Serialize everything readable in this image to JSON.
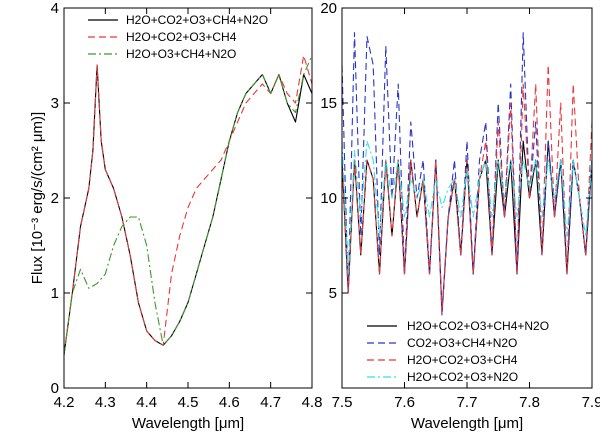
{
  "chart_data": [
    {
      "type": "line",
      "id": "left",
      "xlabel": "Wavelength [μm]",
      "ylabel": "Flux [10⁻³ erg/s/(cm² μm)]",
      "xlim": [
        4.2,
        4.8
      ],
      "ylim": [
        0,
        4
      ],
      "xticks": [
        4.2,
        4.3,
        4.4,
        4.5,
        4.6,
        4.7,
        4.8
      ],
      "xtick_labels": [
        "4.2",
        "4.3",
        "4.4",
        "4.5",
        "4.6",
        "4.7",
        "4.8"
      ],
      "yticks": [
        0,
        1,
        2,
        3,
        4
      ],
      "ytick_labels": [
        "0",
        "1",
        "2",
        "3",
        "4"
      ],
      "legend_position": "top-left",
      "series": [
        {
          "name": "H2O+CO2+O3+CH4+N2O",
          "color": "#000000",
          "dash": "solid",
          "x": [
            4.2,
            4.22,
            4.24,
            4.26,
            4.27,
            4.28,
            4.29,
            4.3,
            4.32,
            4.34,
            4.36,
            4.38,
            4.4,
            4.42,
            4.44,
            4.46,
            4.48,
            4.5,
            4.52,
            4.54,
            4.56,
            4.58,
            4.6,
            4.62,
            4.64,
            4.66,
            4.68,
            4.7,
            4.72,
            4.74,
            4.76,
            4.78,
            4.8
          ],
          "y": [
            0.35,
            1.0,
            1.7,
            2.1,
            2.5,
            3.4,
            2.6,
            2.3,
            2.1,
            1.8,
            1.4,
            0.9,
            0.6,
            0.5,
            0.45,
            0.55,
            0.7,
            0.9,
            1.2,
            1.5,
            1.8,
            2.2,
            2.6,
            2.9,
            3.1,
            3.2,
            3.3,
            3.1,
            3.3,
            3.0,
            2.8,
            3.3,
            3.1
          ]
        },
        {
          "name": "H2O+CO2+O3+CH4",
          "color": "#e8383b",
          "dash": "dashed",
          "x": [
            4.2,
            4.22,
            4.24,
            4.26,
            4.27,
            4.28,
            4.29,
            4.3,
            4.32,
            4.34,
            4.36,
            4.38,
            4.4,
            4.42,
            4.44,
            4.46,
            4.48,
            4.5,
            4.52,
            4.54,
            4.56,
            4.58,
            4.6,
            4.62,
            4.64,
            4.66,
            4.68,
            4.7,
            4.72,
            4.74,
            4.76,
            4.78,
            4.8
          ],
          "y": [
            0.35,
            1.0,
            1.7,
            2.1,
            2.5,
            3.4,
            2.6,
            2.3,
            2.1,
            1.8,
            1.4,
            0.9,
            0.6,
            0.5,
            0.45,
            1.2,
            1.6,
            1.9,
            2.1,
            2.2,
            2.3,
            2.4,
            2.6,
            2.8,
            3.0,
            3.1,
            3.2,
            3.1,
            3.3,
            3.1,
            3.0,
            3.5,
            3.2
          ]
        },
        {
          "name": "H2O+O3+CH4+N2O",
          "color": "#3a9a2a",
          "dash": "dashdot",
          "x": [
            4.2,
            4.22,
            4.24,
            4.26,
            4.28,
            4.3,
            4.32,
            4.34,
            4.36,
            4.38,
            4.4,
            4.42,
            4.44,
            4.46,
            4.48,
            4.5,
            4.52,
            4.54,
            4.56,
            4.58,
            4.6,
            4.62,
            4.64,
            4.66,
            4.68,
            4.7,
            4.72,
            4.74,
            4.76,
            4.78,
            4.8
          ],
          "y": [
            0.35,
            1.0,
            1.25,
            1.05,
            1.1,
            1.2,
            1.5,
            1.7,
            1.8,
            1.8,
            1.5,
            0.9,
            0.45,
            0.55,
            0.7,
            0.9,
            1.2,
            1.5,
            1.8,
            2.2,
            2.6,
            2.9,
            3.1,
            3.2,
            3.3,
            3.1,
            3.3,
            3.0,
            2.9,
            3.3,
            3.5
          ]
        }
      ]
    },
    {
      "type": "line",
      "id": "right",
      "xlabel": "Wavelength [μm]",
      "ylabel": "",
      "xlim": [
        7.5,
        7.9
      ],
      "ylim": [
        0,
        20
      ],
      "xticks": [
        7.5,
        7.6,
        7.7,
        7.8,
        7.9
      ],
      "xtick_labels": [
        "7.5",
        "7.6",
        "7.7",
        "7.8",
        "7.9"
      ],
      "yticks": [
        5,
        10,
        15,
        20
      ],
      "ytick_labels": [
        "5",
        "10",
        "15",
        "20"
      ],
      "legend_position": "bottom-right",
      "series": [
        {
          "name": "H2O+CO2+O3+CH4+N2O",
          "color": "#000000",
          "dash": "solid",
          "x": [
            7.5,
            7.51,
            7.52,
            7.53,
            7.54,
            7.55,
            7.56,
            7.57,
            7.58,
            7.59,
            7.6,
            7.61,
            7.62,
            7.63,
            7.64,
            7.65,
            7.66,
            7.67,
            7.68,
            7.69,
            7.7,
            7.71,
            7.72,
            7.73,
            7.74,
            7.75,
            7.76,
            7.77,
            7.78,
            7.79,
            7.8,
            7.81,
            7.82,
            7.83,
            7.84,
            7.85,
            7.86,
            7.87,
            7.88,
            7.89,
            7.9
          ],
          "y": [
            12,
            5,
            12,
            7,
            12,
            11,
            6,
            12,
            8,
            12,
            6,
            12,
            9,
            11,
            6,
            12,
            4,
            9,
            11,
            7,
            12,
            6,
            11,
            12,
            7,
            12,
            9,
            12,
            6,
            13,
            10,
            12,
            7,
            13,
            9,
            12,
            6,
            12,
            10,
            7,
            12
          ]
        },
        {
          "name": "CO2+O3+CH4+N2O",
          "color": "#2a35c8",
          "dash": "dashed",
          "x": [
            7.5,
            7.51,
            7.52,
            7.53,
            7.54,
            7.55,
            7.56,
            7.57,
            7.58,
            7.59,
            7.6,
            7.61,
            7.62,
            7.63,
            7.64,
            7.65,
            7.66,
            7.67,
            7.68,
            7.69,
            7.7,
            7.71,
            7.72,
            7.73,
            7.74,
            7.75,
            7.76,
            7.77,
            7.78,
            7.79,
            7.8,
            7.81,
            7.82,
            7.83,
            7.84,
            7.85,
            7.86,
            7.87,
            7.88,
            7.89,
            7.9
          ],
          "y": [
            17,
            5,
            18.7,
            8,
            18.5,
            17,
            7,
            18,
            10,
            16,
            6,
            14,
            10,
            12,
            6,
            12,
            3.8,
            9,
            12,
            7,
            13,
            6,
            12,
            14,
            7,
            15,
            9,
            16,
            6,
            18.7,
            10,
            14,
            7,
            13,
            9,
            12,
            6,
            12,
            10,
            7,
            12
          ]
        },
        {
          "name": "H2O+CO2+O3+CH4",
          "color": "#e8383b",
          "dash": "dashed",
          "x": [
            7.5,
            7.51,
            7.52,
            7.53,
            7.54,
            7.55,
            7.56,
            7.57,
            7.58,
            7.59,
            7.6,
            7.61,
            7.62,
            7.63,
            7.64,
            7.65,
            7.66,
            7.67,
            7.68,
            7.69,
            7.7,
            7.71,
            7.72,
            7.73,
            7.74,
            7.75,
            7.76,
            7.77,
            7.78,
            7.79,
            7.8,
            7.81,
            7.82,
            7.83,
            7.84,
            7.85,
            7.86,
            7.87,
            7.88,
            7.89,
            7.9
          ],
          "y": [
            12,
            5,
            12,
            7,
            12,
            11,
            6,
            12,
            8,
            12,
            6,
            12,
            9,
            11,
            6,
            12,
            4,
            9,
            11,
            7,
            12,
            6,
            11,
            13,
            7,
            14,
            9,
            15,
            6,
            16,
            10,
            16,
            7,
            17,
            9,
            15,
            6,
            16,
            10,
            7,
            14
          ]
        },
        {
          "name": "H2O+CO2+O3+N2O",
          "color": "#33e0e0",
          "dash": "dashdot",
          "x": [
            7.5,
            7.51,
            7.52,
            7.53,
            7.54,
            7.55,
            7.56,
            7.57,
            7.58,
            7.59,
            7.6,
            7.61,
            7.62,
            7.63,
            7.64,
            7.65,
            7.66,
            7.67,
            7.68,
            7.69,
            7.7,
            7.71,
            7.72,
            7.73,
            7.74,
            7.75,
            7.76,
            7.77,
            7.78,
            7.79,
            7.8,
            7.81,
            7.82,
            7.83,
            7.84,
            7.85,
            7.86,
            7.87,
            7.88,
            7.89,
            7.9
          ],
          "y": [
            13,
            6,
            12.5,
            9,
            13,
            12,
            8,
            12,
            10,
            12,
            9,
            11,
            10,
            11,
            9,
            11,
            9.5,
            10.5,
            11,
            9,
            11.5,
            9,
            11,
            12,
            9,
            12,
            10,
            12,
            9,
            12,
            10.5,
            12,
            9,
            12,
            10,
            12,
            8,
            12,
            10,
            8,
            12
          ]
        }
      ]
    }
  ]
}
